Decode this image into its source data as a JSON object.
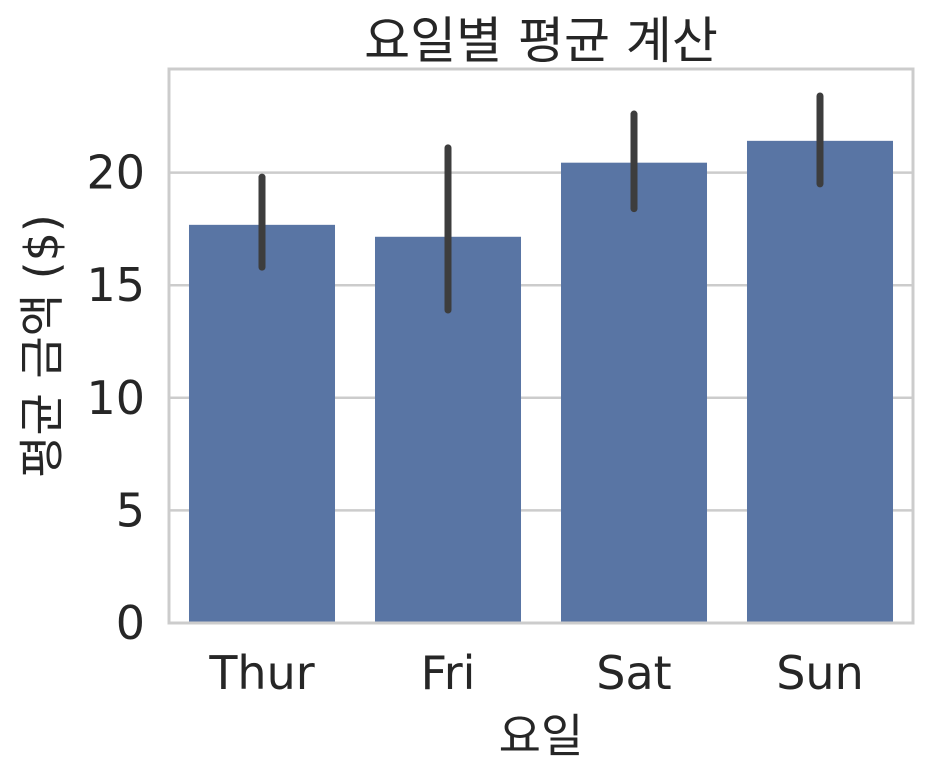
{
  "chart_data": {
    "type": "bar",
    "title": "요일별 평균 계산",
    "xlabel": "요일",
    "ylabel": "평균 금액 ($)",
    "categories": [
      "Thur",
      "Fri",
      "Sat",
      "Sun"
    ],
    "values": [
      17.68,
      17.15,
      20.44,
      21.41
    ],
    "error_bars": [
      {
        "low": 15.8,
        "high": 19.8
      },
      {
        "low": 13.9,
        "high": 21.1
      },
      {
        "low": 18.4,
        "high": 22.6
      },
      {
        "low": 19.5,
        "high": 23.4
      }
    ],
    "yticks": [
      0,
      5,
      10,
      15,
      20
    ],
    "ylim": [
      0,
      24.6
    ],
    "grid": "horizontal",
    "colors": {
      "bar": "#5975a4",
      "errorbar": "#3d3d3d",
      "grid": "#cccccc",
      "spine": "#cccccc",
      "text": "#262626"
    }
  }
}
